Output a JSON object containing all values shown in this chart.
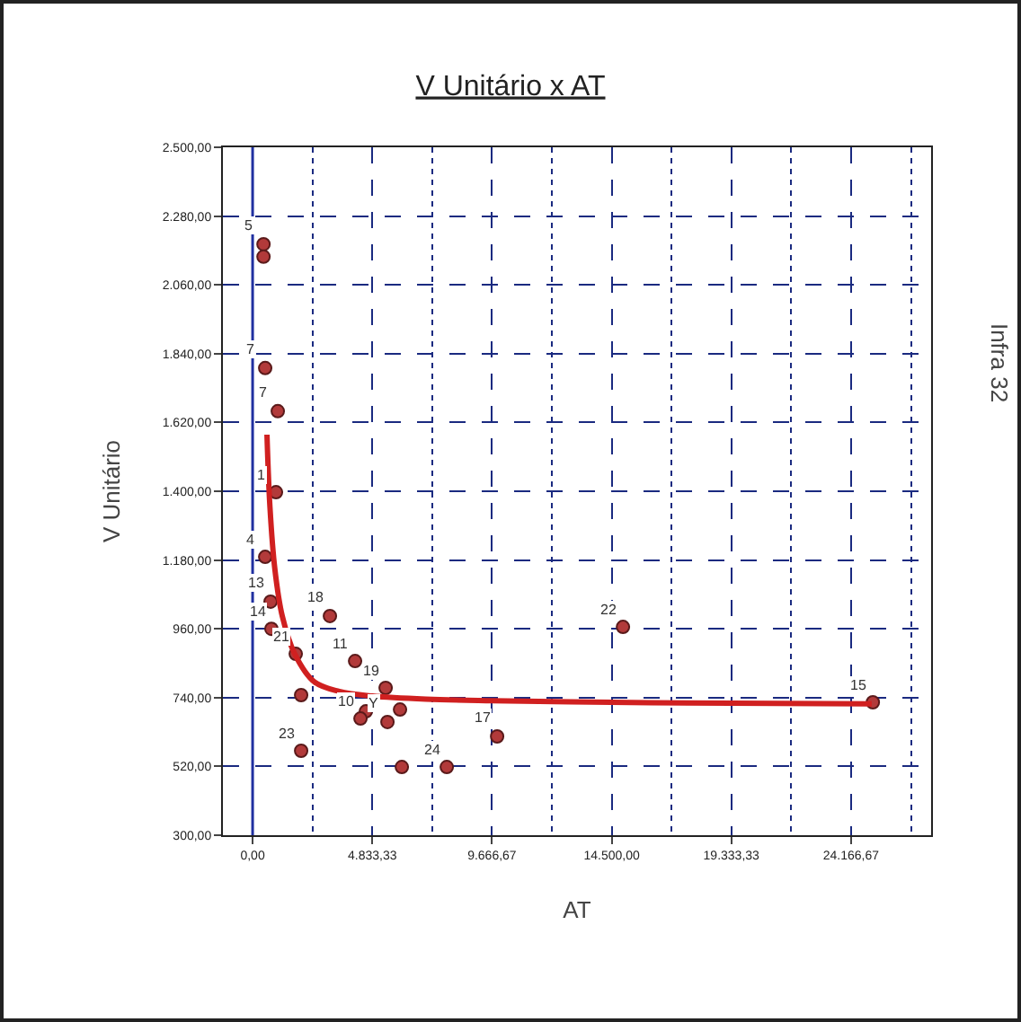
{
  "chart_data": {
    "type": "scatter",
    "title": "V Unitário x AT",
    "xlabel": "AT",
    "ylabel": "V Unitário",
    "xlim": [
      -1200,
      27400
    ],
    "ylim": [
      300,
      2500
    ],
    "xticks": [
      {
        "value": 0,
        "label": "0,00"
      },
      {
        "value": 4833.33,
        "label": "4.833,33"
      },
      {
        "value": 9666.67,
        "label": "9.666,67"
      },
      {
        "value": 14500,
        "label": "14.500,00"
      },
      {
        "value": 19333.33,
        "label": "19.333,33"
      },
      {
        "value": 24166.67,
        "label": "24.166,67"
      }
    ],
    "yticks": [
      {
        "value": 300,
        "label": "300,00"
      },
      {
        "value": 520,
        "label": "520,00"
      },
      {
        "value": 740,
        "label": "740,00"
      },
      {
        "value": 960,
        "label": "960,00"
      },
      {
        "value": 1180,
        "label": "1.180,00"
      },
      {
        "value": 1400,
        "label": "1.400,00"
      },
      {
        "value": 1620,
        "label": "1.620,00"
      },
      {
        "value": 1840,
        "label": "1.840,00"
      },
      {
        "value": 2060,
        "label": "2.060,00"
      },
      {
        "value": 2280,
        "label": "2.280,00"
      },
      {
        "value": 2500,
        "label": "2.500,00"
      }
    ],
    "grid": true,
    "marker": "circle",
    "series": [
      {
        "color": "#b23a3a",
        "x": [
          440,
          440,
          508,
          1016,
          944,
          508,
          726,
          760,
          3122,
          4138,
          5372,
          1742,
          1960,
          4574,
          4356,
          5445,
          5953,
          6026,
          1960,
          7841,
          9874,
          14956,
          25047
        ],
        "values": [
          2190,
          2150,
          1794,
          1656,
          1397,
          1190,
          1047,
          960,
          1001,
          857,
          771,
          880,
          748,
          696,
          673,
          662,
          702,
          518,
          570,
          518,
          616,
          966,
          725
        ]
      },
      {
        "type": "line",
        "marker": "none",
        "color": "#d02020",
        "x": [
          580,
          700,
          900,
          1200,
          1700,
          2500,
          3500,
          4833,
          7000,
          9666,
          14500,
          19333,
          25000
        ],
        "values": [
          1581,
          1350,
          1150,
          1000,
          880,
          790,
          760,
          745,
          735,
          730,
          725,
          722,
          720
        ]
      }
    ],
    "ref_lines": [
      {
        "axis": "x",
        "value": 0,
        "color": "#2030a0"
      }
    ],
    "annotations": [
      {
        "text": "5",
        "x": 440,
        "y": 2190
      },
      {
        "text": "7",
        "x": 508,
        "y": 1794
      },
      {
        "text": "7",
        "x": 1016,
        "y": 1656
      },
      {
        "text": "1",
        "x": 944,
        "y": 1397
      },
      {
        "text": "4",
        "x": 508,
        "y": 1190
      },
      {
        "text": "13",
        "x": 726,
        "y": 1047
      },
      {
        "text": "14",
        "x": 760,
        "y": 960
      },
      {
        "text": "18",
        "x": 3122,
        "y": 1001
      },
      {
        "text": "11",
        "x": 4138,
        "y": 857
      },
      {
        "text": "19",
        "x": 5372,
        "y": 771
      },
      {
        "text": "21",
        "x": 1742,
        "y": 880
      },
      {
        "text": "10",
        "x": 4356,
        "y": 673
      },
      {
        "text": "Y",
        "x": 5445,
        "y": 662
      },
      {
        "text": "23",
        "x": 1960,
        "y": 570
      },
      {
        "text": "24",
        "x": 7841,
        "y": 518
      },
      {
        "text": "17",
        "x": 9874,
        "y": 616
      },
      {
        "text": "22",
        "x": 14956,
        "y": 966
      },
      {
        "text": "15",
        "x": 25047,
        "y": 725
      },
      "Infra 32"
    ]
  }
}
